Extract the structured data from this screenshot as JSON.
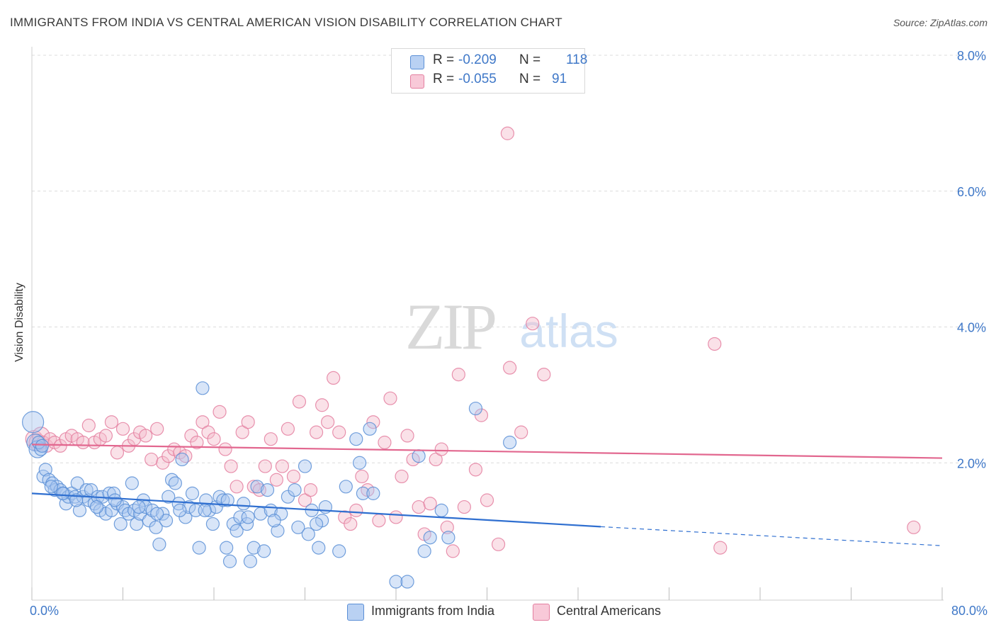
{
  "header": {
    "title": "IMMIGRANTS FROM INDIA VS CENTRAL AMERICAN VISION DISABILITY CORRELATION CHART",
    "source": "Source: ZipAtlas.com"
  },
  "colors": {
    "blue_fill": "#a9c6f0",
    "blue_stroke": "#5b8fd6",
    "blue_line": "#2f6fd0",
    "pink_fill": "#f5bccd",
    "pink_stroke": "#e47fa0",
    "pink_line": "#e2678f",
    "accent_text": "#3f78c8",
    "grid": "#dcdcdc"
  },
  "stats": {
    "blue": {
      "r_label": "R =",
      "r_value": "-0.209",
      "n_label": "N =",
      "n_value": "118"
    },
    "pink": {
      "r_label": "R =",
      "r_value": "-0.055",
      "n_label": "N =",
      "n_value": "91"
    }
  },
  "watermark": {
    "part1": "ZIP",
    "part2": "atlas"
  },
  "chart_data": {
    "type": "scatter",
    "title": "IMMIGRANTS FROM INDIA VS CENTRAL AMERICAN VISION DISABILITY CORRELATION CHART",
    "xlabel": "",
    "ylabel": "Vision Disability",
    "xlim": [
      0,
      80
    ],
    "ylim": [
      0,
      8
    ],
    "x_tick_labels": [
      "0.0%",
      "80.0%"
    ],
    "y_ticks": [
      2,
      4,
      6,
      8
    ],
    "y_tick_labels": [
      "2.0%",
      "4.0%",
      "6.0%",
      "8.0%"
    ],
    "grid": "horizontal dashed",
    "legend_position": "bottom-center",
    "series": [
      {
        "name": "Immigrants from India",
        "color": "#5b8fd6",
        "trend": {
          "x": [
            0,
            50
          ],
          "y": [
            1.55,
            1.06
          ],
          "dashed_extension_to_x": 80,
          "dashed_end_y": 0.78
        },
        "points": [
          [
            0.1,
            2.6
          ],
          [
            0.3,
            2.3
          ],
          [
            0.5,
            2.2
          ],
          [
            0.8,
            2.2
          ],
          [
            1.0,
            1.8
          ],
          [
            1.2,
            1.9
          ],
          [
            1.5,
            1.75
          ],
          [
            1.8,
            1.7
          ],
          [
            2.0,
            1.6
          ],
          [
            2.2,
            1.65
          ],
          [
            2.5,
            1.6
          ],
          [
            2.8,
            1.55
          ],
          [
            3.0,
            1.4
          ],
          [
            3.2,
            1.5
          ],
          [
            3.5,
            1.55
          ],
          [
            3.8,
            1.5
          ],
          [
            4.0,
            1.7
          ],
          [
            4.2,
            1.3
          ],
          [
            4.5,
            1.5
          ],
          [
            4.8,
            1.6
          ],
          [
            5.0,
            1.45
          ],
          [
            5.2,
            1.6
          ],
          [
            5.5,
            1.4
          ],
          [
            5.8,
            1.5
          ],
          [
            6.0,
            1.3
          ],
          [
            6.2,
            1.5
          ],
          [
            6.5,
            1.25
          ],
          [
            6.8,
            1.55
          ],
          [
            7.0,
            1.3
          ],
          [
            7.2,
            1.55
          ],
          [
            7.5,
            1.4
          ],
          [
            7.8,
            1.1
          ],
          [
            8.0,
            1.35
          ],
          [
            8.2,
            1.3
          ],
          [
            8.5,
            1.25
          ],
          [
            8.8,
            1.7
          ],
          [
            9.0,
            1.3
          ],
          [
            9.2,
            1.1
          ],
          [
            9.5,
            1.25
          ],
          [
            9.8,
            1.45
          ],
          [
            10.0,
            1.35
          ],
          [
            10.3,
            1.15
          ],
          [
            10.6,
            1.3
          ],
          [
            10.9,
            1.05
          ],
          [
            11.2,
            0.8
          ],
          [
            11.5,
            1.25
          ],
          [
            11.8,
            1.15
          ],
          [
            12.0,
            1.5
          ],
          [
            12.3,
            1.75
          ],
          [
            12.6,
            1.7
          ],
          [
            12.9,
            1.4
          ],
          [
            13.2,
            2.05
          ],
          [
            13.5,
            1.2
          ],
          [
            13.8,
            1.35
          ],
          [
            14.1,
            1.55
          ],
          [
            14.4,
            1.3
          ],
          [
            14.7,
            0.75
          ],
          [
            15.0,
            3.1
          ],
          [
            15.3,
            1.45
          ],
          [
            15.6,
            1.3
          ],
          [
            15.9,
            1.1
          ],
          [
            16.2,
            1.35
          ],
          [
            16.5,
            1.5
          ],
          [
            16.8,
            1.45
          ],
          [
            17.1,
            0.75
          ],
          [
            17.4,
            0.55
          ],
          [
            17.7,
            1.1
          ],
          [
            18.0,
            1.0
          ],
          [
            18.3,
            1.2
          ],
          [
            18.6,
            1.4
          ],
          [
            18.9,
            1.1
          ],
          [
            19.2,
            0.55
          ],
          [
            19.5,
            0.75
          ],
          [
            19.8,
            1.65
          ],
          [
            20.1,
            1.25
          ],
          [
            20.4,
            0.7
          ],
          [
            20.7,
            1.6
          ],
          [
            21.0,
            1.3
          ],
          [
            21.6,
            1.0
          ],
          [
            21.9,
            1.25
          ],
          [
            22.5,
            1.5
          ],
          [
            23.1,
            1.6
          ],
          [
            23.4,
            1.05
          ],
          [
            24.0,
            1.95
          ],
          [
            24.3,
            0.95
          ],
          [
            24.6,
            1.3
          ],
          [
            25.2,
            0.75
          ],
          [
            25.5,
            1.15
          ],
          [
            25.8,
            1.35
          ],
          [
            27.0,
            0.7
          ],
          [
            27.6,
            1.65
          ],
          [
            28.5,
            2.35
          ],
          [
            28.8,
            2.0
          ],
          [
            29.1,
            1.55
          ],
          [
            29.7,
            2.5
          ],
          [
            30.0,
            1.55
          ],
          [
            32.0,
            0.25
          ],
          [
            33.0,
            0.25
          ],
          [
            34.0,
            2.1
          ],
          [
            35.0,
            0.9
          ],
          [
            36.0,
            1.3
          ],
          [
            36.6,
            0.9
          ],
          [
            39.0,
            2.8
          ],
          [
            42.0,
            2.3
          ],
          [
            0.6,
            2.3
          ],
          [
            0.9,
            2.25
          ],
          [
            1.7,
            1.65
          ],
          [
            2.7,
            1.55
          ],
          [
            3.9,
            1.45
          ],
          [
            5.7,
            1.35
          ],
          [
            7.3,
            1.45
          ],
          [
            9.4,
            1.35
          ],
          [
            11.0,
            1.25
          ],
          [
            13.0,
            1.3
          ],
          [
            15.2,
            1.3
          ],
          [
            17.2,
            1.45
          ],
          [
            19.0,
            1.2
          ],
          [
            21.3,
            1.15
          ],
          [
            25.0,
            1.1
          ],
          [
            34.5,
            0.7
          ]
        ]
      },
      {
        "name": "Central Americans",
        "color": "#e47fa0",
        "trend": {
          "x": [
            0,
            80
          ],
          "y": [
            2.27,
            2.07
          ]
        },
        "points": [
          [
            0.2,
            2.35
          ],
          [
            0.5,
            2.3
          ],
          [
            0.8,
            2.4
          ],
          [
            1.0,
            2.3
          ],
          [
            1.3,
            2.25
          ],
          [
            1.6,
            2.35
          ],
          [
            2.0,
            2.3
          ],
          [
            2.5,
            2.25
          ],
          [
            3.0,
            2.35
          ],
          [
            3.5,
            2.4
          ],
          [
            4.0,
            2.35
          ],
          [
            4.5,
            2.3
          ],
          [
            5.0,
            2.55
          ],
          [
            5.5,
            2.3
          ],
          [
            6.0,
            2.35
          ],
          [
            6.5,
            2.4
          ],
          [
            7.0,
            2.6
          ],
          [
            7.5,
            2.15
          ],
          [
            8.0,
            2.5
          ],
          [
            8.5,
            2.25
          ],
          [
            9.0,
            2.35
          ],
          [
            9.5,
            2.45
          ],
          [
            10.0,
            2.4
          ],
          [
            10.5,
            2.05
          ],
          [
            11.0,
            2.5
          ],
          [
            11.5,
            2.0
          ],
          [
            12.0,
            2.1
          ],
          [
            12.5,
            2.2
          ],
          [
            13.0,
            2.15
          ],
          [
            13.5,
            2.1
          ],
          [
            14.0,
            2.4
          ],
          [
            14.5,
            2.3
          ],
          [
            15.0,
            2.6
          ],
          [
            15.5,
            2.45
          ],
          [
            16.0,
            2.35
          ],
          [
            16.5,
            2.75
          ],
          [
            17.0,
            2.2
          ],
          [
            17.5,
            1.95
          ],
          [
            18.0,
            1.65
          ],
          [
            18.5,
            2.45
          ],
          [
            19.0,
            2.6
          ],
          [
            19.5,
            1.65
          ],
          [
            20.0,
            1.6
          ],
          [
            20.5,
            1.95
          ],
          [
            21.0,
            2.35
          ],
          [
            21.5,
            1.75
          ],
          [
            22.0,
            1.95
          ],
          [
            22.5,
            2.5
          ],
          [
            23.0,
            1.8
          ],
          [
            23.5,
            2.9
          ],
          [
            24.0,
            1.45
          ],
          [
            24.5,
            1.6
          ],
          [
            25.0,
            2.45
          ],
          [
            25.5,
            2.85
          ],
          [
            26.0,
            2.6
          ],
          [
            26.5,
            3.25
          ],
          [
            27.0,
            2.45
          ],
          [
            27.5,
            1.2
          ],
          [
            28.0,
            1.1
          ],
          [
            28.5,
            1.3
          ],
          [
            29.0,
            1.8
          ],
          [
            29.5,
            1.6
          ],
          [
            30.0,
            2.6
          ],
          [
            30.5,
            1.15
          ],
          [
            31.0,
            2.3
          ],
          [
            31.5,
            2.95
          ],
          [
            32.0,
            1.2
          ],
          [
            32.5,
            1.8
          ],
          [
            33.0,
            2.4
          ],
          [
            33.5,
            2.05
          ],
          [
            34.0,
            1.35
          ],
          [
            34.5,
            0.95
          ],
          [
            35.0,
            1.4
          ],
          [
            35.5,
            2.05
          ],
          [
            36.0,
            2.2
          ],
          [
            36.5,
            1.05
          ],
          [
            37.0,
            0.7
          ],
          [
            37.5,
            3.3
          ],
          [
            38.0,
            1.35
          ],
          [
            39.0,
            1.9
          ],
          [
            39.5,
            2.7
          ],
          [
            40.0,
            1.45
          ],
          [
            41.0,
            0.8
          ],
          [
            42.0,
            3.4
          ],
          [
            43.0,
            2.45
          ],
          [
            44.0,
            4.05
          ],
          [
            45.0,
            3.3
          ],
          [
            41.8,
            6.85
          ],
          [
            60.0,
            3.75
          ],
          [
            60.5,
            0.75
          ],
          [
            77.5,
            1.05
          ]
        ]
      }
    ]
  },
  "legend": {
    "items": [
      {
        "label": "Immigrants from India"
      },
      {
        "label": "Central Americans"
      }
    ]
  }
}
